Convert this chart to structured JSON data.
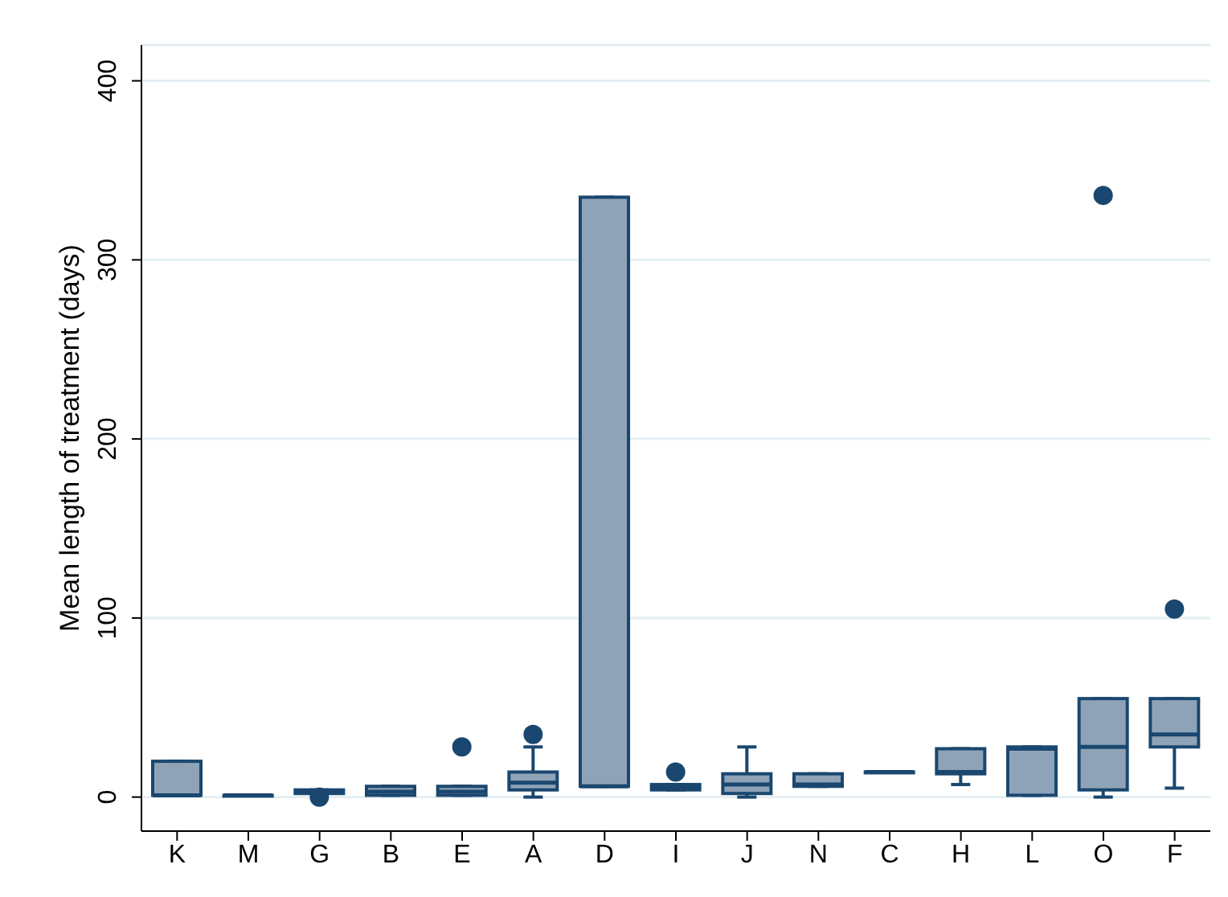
{
  "chart_data": {
    "type": "box",
    "ylabel": "Mean length of treatment (days)",
    "categories": [
      "K",
      "M",
      "G",
      "B",
      "E",
      "A",
      "D",
      "I",
      "J",
      "N",
      "C",
      "H",
      "L",
      "O",
      "F"
    ],
    "series": [
      {
        "color": "#8fa3b8",
        "boxes": [
          {
            "low": 1,
            "q1": 1,
            "median": 1,
            "q3": 20,
            "high": 20
          },
          {
            "low": 1,
            "q1": 1,
            "median": 1,
            "q3": 1,
            "high": 1
          },
          {
            "low": 2,
            "q1": 2,
            "median": 3,
            "q3": 4,
            "high": 4,
            "outliers": [
              0
            ]
          },
          {
            "low": 1,
            "q1": 1,
            "median": 3,
            "q3": 6,
            "high": 6
          },
          {
            "low": 1,
            "q1": 1,
            "median": 3,
            "q3": 6,
            "high": 6,
            "outliers": [
              28
            ]
          },
          {
            "low": 0,
            "q1": 4,
            "median": 8,
            "q3": 14,
            "high": 28,
            "outliers": [
              35
            ]
          },
          {
            "low": 6,
            "q1": 6,
            "median": 6,
            "q3": 335,
            "high": 335
          },
          {
            "low": 4,
            "q1": 4,
            "median": 5,
            "q3": 7,
            "high": 7,
            "outliers": [
              14
            ]
          },
          {
            "low": 0,
            "q1": 2,
            "median": 7,
            "q3": 13,
            "high": 28
          },
          {
            "low": 6,
            "q1": 6,
            "median": 7,
            "q3": 13,
            "high": 13
          },
          {
            "low": 14,
            "q1": 14,
            "median": 14,
            "q3": 14,
            "high": 14
          },
          {
            "low": 7,
            "q1": 13,
            "median": 14,
            "q3": 27,
            "high": 27
          },
          {
            "low": 1,
            "q1": 1,
            "median": 27,
            "q3": 28,
            "high": 28
          },
          {
            "low": 0,
            "q1": 4,
            "median": 28,
            "q3": 55,
            "high": 55,
            "outliers": [
              336
            ]
          },
          {
            "low": 5,
            "q1": 28,
            "median": 35,
            "q3": 55,
            "high": 55,
            "outliers": [
              105
            ]
          }
        ]
      }
    ],
    "ylim": [
      -19,
      420
    ],
    "yticks": [
      0,
      100,
      200,
      300,
      400
    ],
    "grid": "y"
  }
}
